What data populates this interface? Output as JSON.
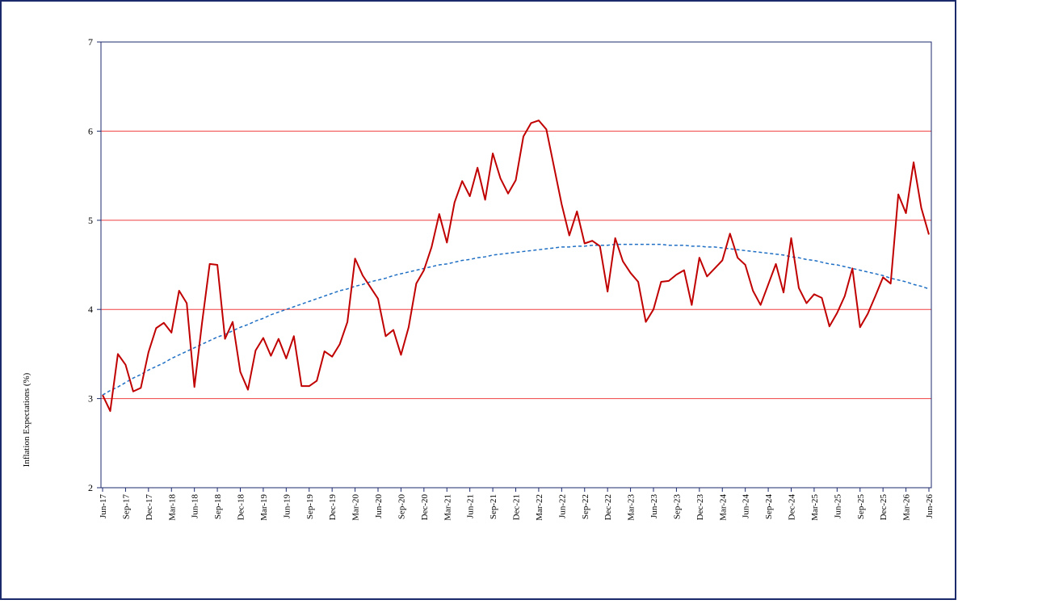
{
  "chart_data": {
    "type": "line",
    "y_label": "Inflation Expectations (%)",
    "categories": [
      "Jun-17",
      null,
      null,
      "Sep-17",
      null,
      null,
      "Dec-17",
      null,
      null,
      "Mar-18",
      null,
      null,
      "Jun-18",
      null,
      null,
      "Sep-18",
      null,
      null,
      "Dec-18",
      null,
      null,
      "Mar-19",
      null,
      null,
      "Jun-19",
      null,
      null,
      "Sep-19",
      null,
      null,
      "Dec-19",
      null,
      null,
      "Mar-20",
      null,
      null,
      "Jun-20",
      null,
      null,
      "Sep-20",
      null,
      null,
      "Dec-20",
      null,
      null,
      "Mar-21",
      null,
      null,
      "Jun-21",
      null,
      null,
      "Sep-21",
      null,
      null,
      "Dec-21",
      null,
      null,
      "Mar-22",
      null,
      null,
      "Jun-22",
      null,
      null,
      "Sep-22",
      null,
      null,
      "Dec-22",
      null,
      null,
      "Mar-23",
      null,
      null,
      "Jun-23",
      null,
      null,
      "Sep-23",
      null,
      null,
      "Dec-23",
      null,
      null,
      "Mar-24",
      null,
      null,
      "Jun-24",
      null,
      null,
      "Sep-24",
      null,
      null,
      "Dec-24",
      null,
      null,
      "Mar-25",
      null,
      null,
      "Jun-25",
      null,
      null,
      "Sep-25",
      null,
      null,
      "Dec-25",
      null,
      null,
      "Mar-26",
      null,
      null,
      "Jun-26"
    ],
    "series": [
      {
        "color": "#c00000",
        "style": "solid",
        "values": [
          3.04,
          2.86,
          3.5,
          3.38,
          3.08,
          3.12,
          3.52,
          3.79,
          3.85,
          3.74,
          4.21,
          4.07,
          3.13,
          3.85,
          4.51,
          4.5,
          3.67,
          3.86,
          3.3,
          3.1,
          3.54,
          3.68,
          3.48,
          3.67,
          3.45,
          3.7,
          3.14,
          3.14,
          3.2,
          3.53,
          3.47,
          3.61,
          3.86,
          4.57,
          4.38,
          4.25,
          4.12,
          3.7,
          3.77,
          3.49,
          3.8,
          4.29,
          4.44,
          4.7,
          5.07,
          4.75,
          5.2,
          5.44,
          5.27,
          5.59,
          5.23,
          5.75,
          5.47,
          5.3,
          5.45,
          5.94,
          6.09,
          6.12,
          6.02,
          5.6,
          5.18,
          4.83,
          5.1,
          4.74,
          4.77,
          4.71,
          4.2,
          4.8,
          4.54,
          4.41,
          4.31,
          3.86,
          4.0,
          4.31,
          4.32,
          4.39,
          4.44,
          4.05,
          4.58,
          4.37,
          4.46,
          4.55,
          4.85,
          4.58,
          4.5,
          4.21,
          4.05,
          4.28,
          4.51,
          4.19,
          4.8,
          4.24,
          4.07,
          4.17,
          4.13,
          3.81,
          3.96,
          4.15,
          4.46,
          3.8,
          3.95,
          4.15,
          4.36,
          4.29,
          5.29,
          5.08,
          5.65,
          5.14,
          4.84
        ]
      },
      {
        "color": "#1f6fc4",
        "style": "dashed",
        "values": [
          3.04,
          3.09,
          3.13,
          3.18,
          3.23,
          3.27,
          3.32,
          3.36,
          3.4,
          3.45,
          3.49,
          3.53,
          3.57,
          3.61,
          3.65,
          3.69,
          3.72,
          3.76,
          3.8,
          3.83,
          3.87,
          3.9,
          3.94,
          3.97,
          4.0,
          4.03,
          4.06,
          4.09,
          4.12,
          4.15,
          4.18,
          4.21,
          4.23,
          4.26,
          4.28,
          4.31,
          4.33,
          4.35,
          4.38,
          4.4,
          4.42,
          4.44,
          4.46,
          4.48,
          4.5,
          4.51,
          4.53,
          4.55,
          4.56,
          4.58,
          4.59,
          4.61,
          4.62,
          4.63,
          4.64,
          4.65,
          4.66,
          4.67,
          4.68,
          4.69,
          4.7,
          4.7,
          4.71,
          4.71,
          4.72,
          4.72,
          4.72,
          4.73,
          4.73,
          4.73,
          4.73,
          4.73,
          4.73,
          4.73,
          4.72,
          4.72,
          4.72,
          4.71,
          4.71,
          4.7,
          4.7,
          4.69,
          4.68,
          4.67,
          4.66,
          4.65,
          4.64,
          4.63,
          4.62,
          4.61,
          4.59,
          4.58,
          4.56,
          4.55,
          4.53,
          4.51,
          4.5,
          4.48,
          4.46,
          4.44,
          4.42,
          4.4,
          4.38,
          4.35,
          4.33,
          4.31,
          4.28,
          4.26,
          4.23
        ]
      }
    ],
    "ylim": [
      2,
      7
    ],
    "yticks": [
      2,
      3,
      4,
      5,
      6,
      7
    ],
    "grid": true,
    "grid_color": "#f04040"
  }
}
